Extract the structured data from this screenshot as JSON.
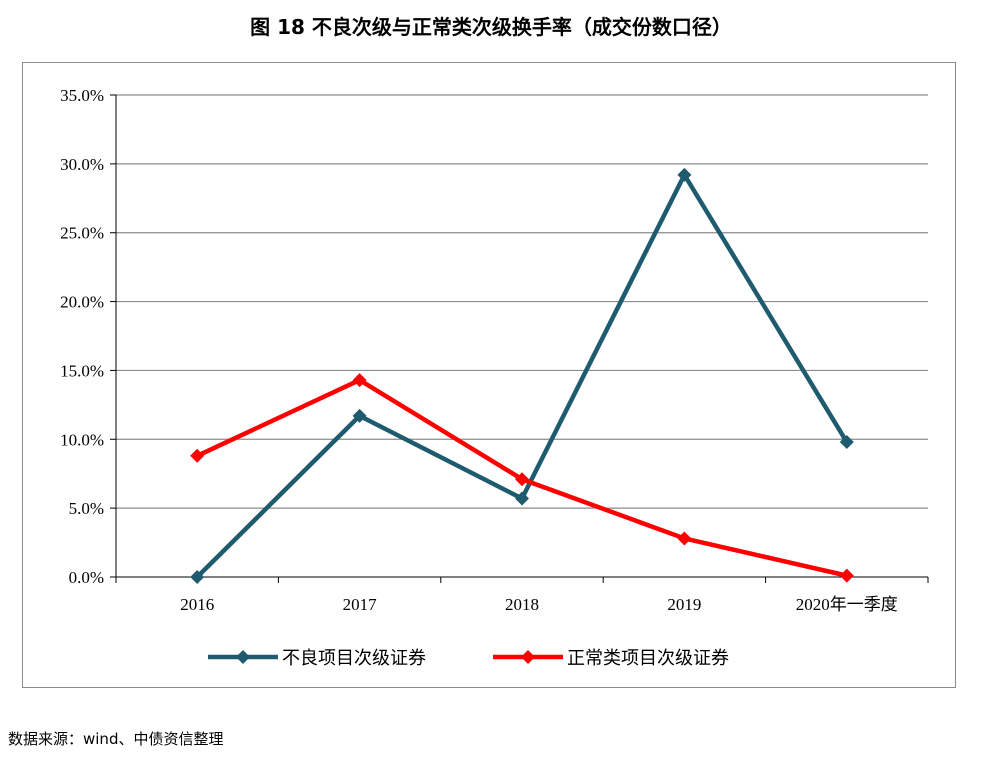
{
  "figure": {
    "title": "图 18  不良次级与正常类次级换手率（成交份数口径）",
    "source": "数据来源：wind、中债资信整理"
  },
  "chart_data": {
    "type": "line",
    "categories": [
      "2016",
      "2017",
      "2018",
      "2019",
      "2020年一季度"
    ],
    "series": [
      {
        "name": "不良项目次级证券",
        "color": "#1f5b6e",
        "marker": "diamond",
        "values": [
          0.0,
          11.7,
          5.7,
          29.2,
          9.8
        ]
      },
      {
        "name": "正常类项目次级证券",
        "color": "#ff0000",
        "marker": "diamond",
        "values": [
          8.8,
          14.3,
          7.1,
          2.8,
          0.1
        ]
      }
    ],
    "ylim": [
      0,
      35
    ],
    "yticks": [
      0,
      5,
      10,
      15,
      20,
      25,
      30,
      35
    ],
    "ytick_labels": [
      "0.0%",
      "5.0%",
      "10.0%",
      "15.0%",
      "20.0%",
      "25.0%",
      "30.0%",
      "35.0%"
    ],
    "grid": true,
    "gridline_color": "#8c8c8c",
    "legend_position": "bottom",
    "xlabel": "",
    "ylabel": ""
  }
}
